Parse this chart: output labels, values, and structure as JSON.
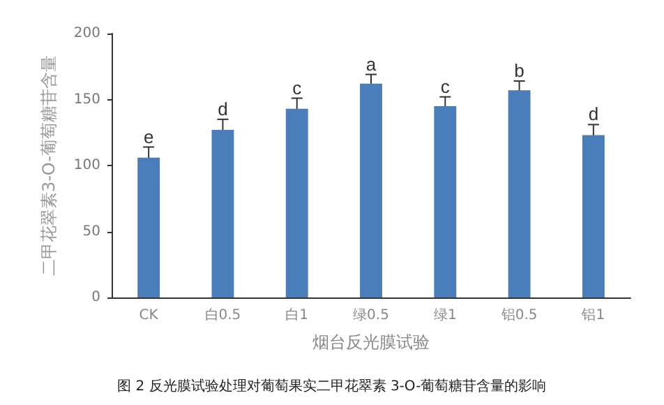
{
  "chart_data": {
    "type": "bar",
    "xlabel": "烟台反光膜试验",
    "ylabel": "二甲花翠素3-O-葡萄糖苷含量",
    "categories": [
      "CK",
      "白0.5",
      "白1",
      "绿0.5",
      "绿1",
      "铝0.5",
      "铝1"
    ],
    "values": [
      106,
      127,
      143,
      162,
      145,
      157,
      123
    ],
    "color": "#4a7ebb",
    "errors": [
      8,
      8,
      8,
      7,
      7,
      7,
      8
    ],
    "ylim": [
      0,
      200
    ],
    "yticks": [
      0,
      50,
      100,
      150,
      200
    ],
    "grid": false,
    "annotations": [
      {
        "text": "e",
        "x": "CK",
        "y": 114
      },
      {
        "text": "d",
        "x": "白0.5",
        "y": 135
      },
      {
        "text": "c",
        "x": "白1",
        "y": 151
      },
      {
        "text": "a",
        "x": "绿0.5",
        "y": 169
      },
      {
        "text": "c",
        "x": "绿1",
        "y": 152
      },
      {
        "text": "b",
        "x": "铝0.5",
        "y": 164
      },
      {
        "text": "d",
        "x": "铝1",
        "y": 131
      },
      "图 2 反光膜试验处理对葡萄果实二甲花翠素 3-O-葡萄糖苷含量的影响"
    ]
  }
}
